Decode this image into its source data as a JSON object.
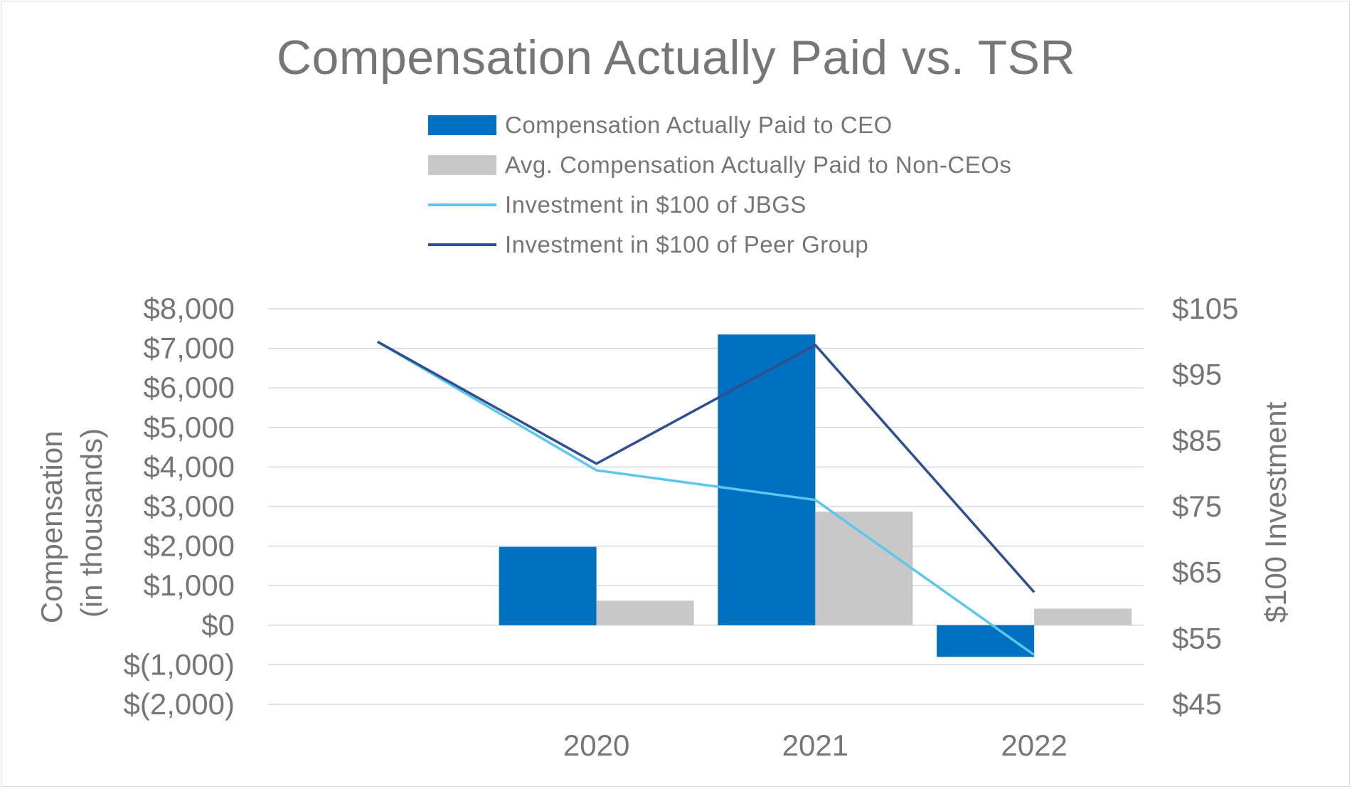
{
  "chart_data": {
    "type": "bar",
    "title": "Compensation Actually Paid vs. TSR",
    "categories": [
      "",
      "2020",
      "2021",
      "2022"
    ],
    "series": [
      {
        "name": "Compensation Actually Paid to CEO",
        "kind": "bar",
        "axis": "left",
        "color": "#0070c0",
        "values": [
          null,
          1980,
          7350,
          -800
        ]
      },
      {
        "name": "Avg. Compensation Actually Paid to Non-CEOs",
        "kind": "bar",
        "axis": "left",
        "color": "#c8c8c8",
        "values": [
          null,
          620,
          2870,
          420
        ]
      },
      {
        "name": "Investment in $100 of JBGS",
        "kind": "line",
        "axis": "right",
        "color": "#5bc8eb",
        "values": [
          100,
          80.5,
          76,
          52.5
        ]
      },
      {
        "name": "Investment in $100 of Peer Group",
        "kind": "line",
        "axis": "right",
        "color": "#2f4f90",
        "values": [
          100,
          81.5,
          99.5,
          62
        ]
      }
    ],
    "ylabel": "Compensation\n(in thousands)",
    "ylabel_lines": [
      "Compensation",
      "(in thousands)"
    ],
    "y2label": "$100 Investment",
    "ylim": [
      -2000,
      8000
    ],
    "y_ticks": [
      8000,
      7000,
      6000,
      5000,
      4000,
      3000,
      2000,
      1000,
      0,
      -1000,
      -2000
    ],
    "y_tick_labels": [
      "$8,000",
      "$7,000",
      "$6,000",
      "$5,000",
      "$4,000",
      "$3,000",
      "$2,000",
      "$1,000",
      "$0",
      "$(1,000)",
      "$(2,000)"
    ],
    "y2lim": [
      45,
      105
    ],
    "y2_ticks": [
      105,
      95,
      85,
      75,
      65,
      55,
      45
    ],
    "y2_tick_labels": [
      "$105",
      "$95",
      "$85",
      "$75",
      "$65",
      "$55",
      "$45"
    ],
    "grid": true,
    "legend_position": "top"
  }
}
